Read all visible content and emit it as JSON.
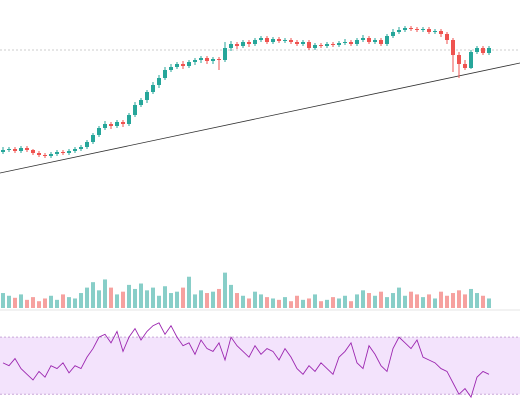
{
  "chart_data": {
    "type": "candlestick",
    "open": [
      158,
      160,
      161,
      159,
      162,
      160,
      157,
      155,
      154,
      156,
      158,
      157,
      159,
      161,
      163,
      168,
      175,
      182,
      186,
      184,
      188,
      186,
      195,
      205,
      210,
      218,
      225,
      232,
      240,
      243,
      246,
      244,
      248,
      250,
      252,
      249,
      251,
      250,
      262,
      266,
      264,
      268,
      266,
      270,
      272,
      268,
      271,
      269,
      270,
      268,
      266,
      268,
      262,
      265,
      264,
      266,
      265,
      267,
      268,
      266,
      270,
      272,
      268,
      270,
      266,
      274,
      278,
      280,
      282,
      281,
      280,
      281,
      278,
      279,
      276,
      270,
      255,
      246,
      242,
      258,
      262,
      257
    ],
    "high": [
      163,
      163,
      163,
      164,
      164,
      161,
      159,
      157,
      158,
      160,
      160,
      161,
      163,
      165,
      170,
      177,
      184,
      189,
      188,
      190,
      190,
      197,
      208,
      212,
      220,
      228,
      235,
      243,
      246,
      248,
      249,
      250,
      252,
      254,
      254,
      253,
      253,
      268,
      269,
      268,
      270,
      270,
      272,
      274,
      274,
      273,
      273,
      272,
      272,
      270,
      270,
      270,
      267,
      267,
      268,
      268,
      269,
      271,
      270,
      272,
      275,
      274,
      272,
      272,
      276,
      281,
      283,
      284,
      284,
      283,
      283,
      283,
      281,
      281,
      278,
      272,
      258,
      250,
      260,
      264,
      264,
      264
    ],
    "low": [
      156,
      158,
      157,
      157,
      158,
      155,
      153,
      152,
      152,
      154,
      155,
      155,
      157,
      159,
      161,
      166,
      173,
      180,
      181,
      182,
      183,
      184,
      193,
      203,
      207,
      216,
      222,
      230,
      238,
      241,
      241,
      242,
      245,
      247,
      246,
      246,
      240,
      248,
      259,
      261,
      262,
      263,
      264,
      268,
      266,
      266,
      267,
      267,
      266,
      264,
      264,
      260,
      260,
      262,
      262,
      263,
      263,
      265,
      264,
      264,
      268,
      266,
      266,
      264,
      264,
      272,
      276,
      278,
      279,
      278,
      278,
      276,
      276,
      273,
      266,
      238,
      232,
      240,
      241,
      256,
      255,
      255
    ],
    "close": [
      160,
      161,
      159,
      162,
      160,
      157,
      155,
      154,
      156,
      158,
      157,
      159,
      161,
      163,
      168,
      175,
      182,
      186,
      184,
      188,
      186,
      195,
      205,
      210,
      218,
      225,
      232,
      240,
      243,
      246,
      244,
      248,
      250,
      252,
      249,
      251,
      250,
      262,
      266,
      264,
      268,
      266,
      270,
      272,
      268,
      271,
      269,
      270,
      268,
      266,
      268,
      262,
      265,
      264,
      266,
      265,
      267,
      268,
      266,
      270,
      272,
      268,
      270,
      266,
      274,
      278,
      280,
      282,
      281,
      280,
      281,
      278,
      279,
      276,
      270,
      255,
      246,
      242,
      258,
      262,
      257,
      262
    ],
    "volume": [
      22,
      18,
      15,
      20,
      12,
      16,
      10,
      14,
      18,
      12,
      20,
      16,
      14,
      22,
      30,
      38,
      26,
      42,
      30,
      20,
      24,
      34,
      28,
      36,
      26,
      30,
      18,
      32,
      22,
      24,
      30,
      46,
      20,
      26,
      22,
      24,
      28,
      52,
      34,
      22,
      18,
      14,
      24,
      20,
      16,
      14,
      12,
      16,
      10,
      18,
      12,
      14,
      20,
      10,
      12,
      16,
      14,
      18,
      10,
      20,
      26,
      22,
      18,
      24,
      16,
      22,
      30,
      18,
      24,
      20,
      16,
      20,
      14,
      24,
      18,
      22,
      26,
      20,
      28,
      22,
      18,
      14
    ],
    "rsi": [
      52,
      50,
      55,
      48,
      44,
      40,
      46,
      42,
      50,
      48,
      52,
      45,
      50,
      48,
      56,
      62,
      70,
      72,
      66,
      74,
      60,
      70,
      76,
      68,
      74,
      78,
      80,
      72,
      78,
      70,
      64,
      66,
      58,
      68,
      62,
      60,
      66,
      54,
      70,
      64,
      60,
      56,
      64,
      58,
      62,
      60,
      54,
      62,
      56,
      48,
      44,
      50,
      46,
      52,
      48,
      44,
      56,
      60,
      66,
      52,
      48,
      64,
      58,
      50,
      46,
      62,
      70,
      66,
      62,
      68,
      56,
      54,
      52,
      48,
      46,
      38,
      30,
      34,
      28,
      42,
      46,
      44
    ],
    "ylim": [
      0,
      310
    ],
    "volume_ylim": [
      0,
      100
    ],
    "rsi_ylim": [
      26,
      82
    ],
    "rsi_band": [
      30,
      70
    ],
    "trendline": [
      137,
      247
    ],
    "price_line": 260,
    "up_color": "#26a69a",
    "down_color": "#ef5350",
    "rsi_color": "#9c27b0",
    "band_color": "#f3e3fc"
  }
}
